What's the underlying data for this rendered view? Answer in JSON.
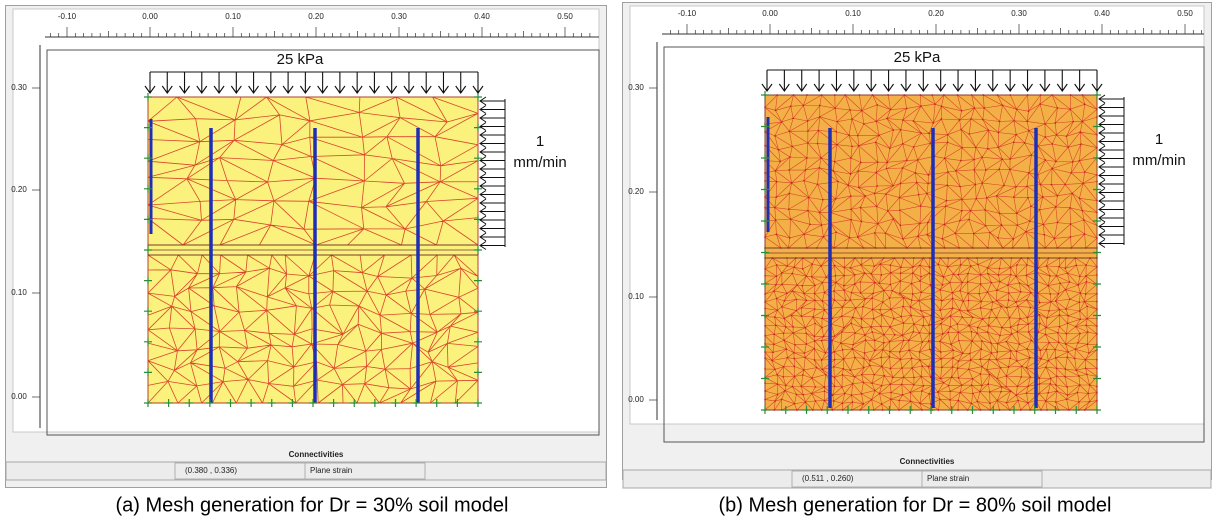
{
  "panels": [
    {
      "ruler_x_labels": [
        "-0.10",
        "0.00",
        "0.10",
        "0.20",
        "0.30",
        "0.40",
        "0.50"
      ],
      "ruler_y_labels": [
        "0.30",
        "0.20",
        "0.10",
        "0.00"
      ],
      "load_label": "25 kPa",
      "rate_value": "1",
      "rate_unit": "mm/min",
      "connectivities": "Connectivities",
      "status_coords": "(0.380 , 0.336)",
      "status_mode": "Plane strain",
      "caption": "(a) Mesh generation for Dr = 30% soil model"
    },
    {
      "ruler_x_labels": [
        "-0.10",
        "0.00",
        "0.10",
        "0.20",
        "0.30",
        "0.40",
        "0.50"
      ],
      "ruler_y_labels": [
        "0.30",
        "0.20",
        "0.10",
        "0.00"
      ],
      "load_label": "25 kPa",
      "rate_value": "1",
      "rate_unit": "mm/min",
      "connectivities": "Connectivities",
      "status_coords": "(0.511 , 0.260)",
      "status_mode": "Plane strain",
      "caption": "(b) Mesh generation for Dr = 80% soil model"
    }
  ]
}
